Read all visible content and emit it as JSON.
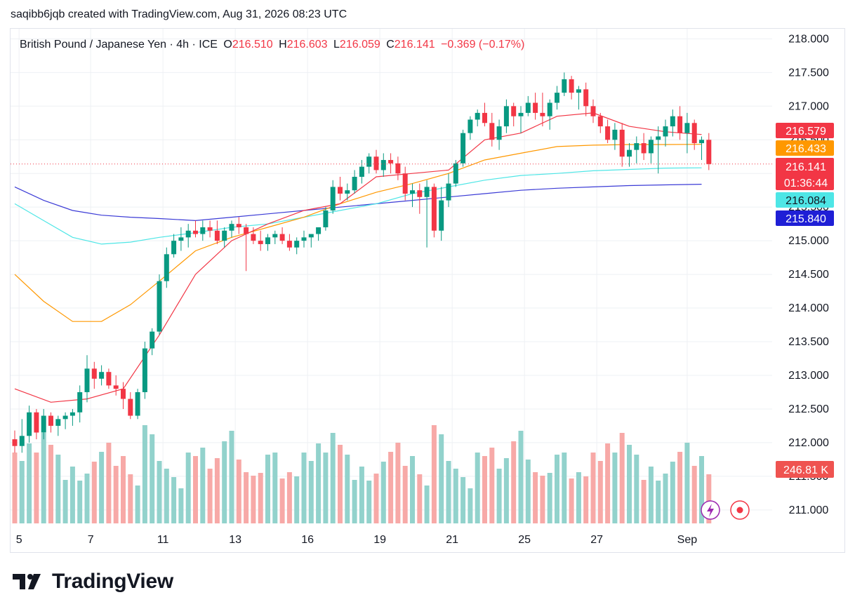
{
  "header": {
    "text": "saqibb6jqb created with TradingView.com, Aug 31, 2026 08:23 UTC"
  },
  "legend": {
    "symbol": "British Pound / Japanese Yen · 4h · ICE",
    "o_label": "O",
    "o_value": "216.510",
    "h_label": "H",
    "h_value": "216.603",
    "l_label": "L",
    "l_value": "216.059",
    "c_label": "C",
    "c_value": "216.141",
    "change": "−0.369 (−0.17%)"
  },
  "footer": {
    "brand": "TradingView"
  },
  "colors": {
    "up": "#089981",
    "down": "#f23645",
    "vol_up": "#92d2cc",
    "vol_down": "#f7a9a7",
    "ma_red": "#f23645",
    "ma_orange": "#ff9800",
    "ma_cyan": "#4ee6e6",
    "ma_blue": "#3b3bd6"
  },
  "chart_data": {
    "type": "candlestick",
    "symbol": "British Pound / Japanese Yen",
    "interval": "4h",
    "exchange": "ICE",
    "ylim": [
      210.8,
      218.15
    ],
    "y_ticks": [
      "218.000",
      "217.500",
      "217.000",
      "216.500",
      "216.000",
      "215.500",
      "215.000",
      "214.500",
      "214.000",
      "213.500",
      "213.000",
      "212.500",
      "212.000",
      "211.500",
      "211.000"
    ],
    "x_ticks": [
      {
        "label": "5",
        "index": 0.6
      },
      {
        "label": "7",
        "index": 10.5
      },
      {
        "label": "11",
        "index": 20.5
      },
      {
        "label": "13",
        "index": 30.5
      },
      {
        "label": "16",
        "index": 40.5
      },
      {
        "label": "19",
        "index": 50.5
      },
      {
        "label": "21",
        "index": 60.5
      },
      {
        "label": "25",
        "index": 70.5
      },
      {
        "label": "27",
        "index": 80.5
      },
      {
        "label": "Sep",
        "index": 93.0
      }
    ],
    "price_labels": [
      {
        "value": "216.579",
        "price": 216.579,
        "color": "#f23645"
      },
      {
        "value": "216.433",
        "price": 216.433,
        "color": "#ff9800"
      },
      {
        "value": "216.141",
        "countdown": "01:36:44",
        "price": 216.141,
        "color": "#f23645"
      },
      {
        "value": "216.084",
        "price": 216.084,
        "color": "#4ee6e6"
      },
      {
        "value": "215.840",
        "price": 215.84,
        "color": "#1f1fd6"
      }
    ],
    "volume_label": "246.81 K",
    "candles": [
      [
        212.05,
        212.18,
        211.85,
        211.95
      ],
      [
        211.95,
        212.35,
        211.85,
        212.1
      ],
      [
        212.1,
        212.55,
        212.0,
        212.45
      ],
      [
        212.45,
        212.5,
        212.05,
        212.15
      ],
      [
        212.15,
        212.5,
        212.05,
        212.4
      ],
      [
        212.4,
        212.45,
        212.15,
        212.25
      ],
      [
        212.25,
        212.4,
        212.1,
        212.35
      ],
      [
        212.35,
        212.45,
        212.2,
        212.4
      ],
      [
        212.4,
        212.5,
        212.25,
        212.45
      ],
      [
        212.45,
        212.85,
        212.3,
        212.75
      ],
      [
        212.75,
        213.3,
        212.6,
        213.1
      ],
      [
        213.1,
        213.2,
        212.8,
        212.95
      ],
      [
        212.95,
        213.15,
        212.85,
        213.05
      ],
      [
        213.05,
        213.1,
        212.8,
        212.85
      ],
      [
        212.85,
        213.0,
        212.7,
        212.8
      ],
      [
        212.8,
        212.9,
        212.5,
        212.65
      ],
      [
        212.65,
        212.75,
        212.35,
        212.4
      ],
      [
        212.4,
        212.8,
        212.35,
        212.75
      ],
      [
        212.75,
        213.5,
        212.65,
        213.4
      ],
      [
        213.4,
        213.7,
        213.3,
        213.65
      ],
      [
        213.65,
        214.5,
        213.6,
        214.4
      ],
      [
        214.4,
        214.9,
        214.3,
        214.8
      ],
      [
        214.8,
        215.1,
        214.75,
        215.0
      ],
      [
        215.0,
        215.2,
        214.85,
        215.05
      ],
      [
        215.05,
        215.25,
        214.9,
        215.15
      ],
      [
        215.15,
        215.3,
        215.05,
        215.1
      ],
      [
        215.1,
        215.3,
        215.0,
        215.2
      ],
      [
        215.2,
        215.3,
        215.05,
        215.15
      ],
      [
        215.15,
        215.3,
        214.95,
        215.0
      ],
      [
        215.0,
        215.2,
        214.9,
        215.15
      ],
      [
        215.15,
        215.3,
        215.05,
        215.25
      ],
      [
        215.25,
        215.35,
        215.1,
        215.2
      ],
      [
        215.2,
        215.25,
        214.55,
        215.1
      ],
      [
        215.1,
        215.2,
        214.95,
        215.0
      ],
      [
        215.0,
        215.15,
        214.85,
        214.95
      ],
      [
        214.95,
        215.1,
        214.85,
        215.05
      ],
      [
        215.05,
        215.15,
        214.95,
        215.1
      ],
      [
        215.1,
        215.2,
        214.95,
        215.0
      ],
      [
        215.0,
        215.1,
        214.85,
        214.9
      ],
      [
        214.9,
        215.05,
        214.8,
        215.0
      ],
      [
        215.0,
        215.15,
        214.9,
        215.05
      ],
      [
        215.05,
        215.1,
        214.9,
        215.1
      ],
      [
        215.1,
        215.2,
        215.0,
        215.2
      ],
      [
        215.2,
        215.5,
        215.15,
        215.45
      ],
      [
        215.45,
        215.9,
        215.4,
        215.8
      ],
      [
        215.8,
        215.95,
        215.6,
        215.7
      ],
      [
        215.7,
        215.85,
        215.6,
        215.75
      ],
      [
        215.75,
        216.05,
        215.7,
        215.95
      ],
      [
        215.95,
        216.2,
        215.85,
        216.1
      ],
      [
        216.1,
        216.3,
        216.0,
        216.25
      ],
      [
        216.25,
        216.35,
        216.0,
        216.05
      ],
      [
        216.05,
        216.3,
        215.95,
        216.2
      ],
      [
        216.2,
        216.3,
        216.0,
        216.15
      ],
      [
        216.15,
        216.25,
        215.9,
        216.0
      ],
      [
        216.0,
        216.1,
        215.6,
        215.7
      ],
      [
        215.7,
        215.85,
        215.5,
        215.75
      ],
      [
        215.75,
        215.85,
        215.4,
        215.65
      ],
      [
        215.65,
        215.9,
        214.9,
        215.8
      ],
      [
        215.8,
        215.85,
        215.05,
        215.15
      ],
      [
        215.15,
        215.8,
        215.0,
        215.6
      ],
      [
        215.6,
        216.0,
        215.5,
        215.85
      ],
      [
        215.85,
        216.2,
        215.8,
        216.15
      ],
      [
        216.15,
        216.65,
        216.1,
        216.6
      ],
      [
        216.6,
        216.85,
        216.5,
        216.8
      ],
      [
        216.8,
        216.95,
        216.7,
        216.9
      ],
      [
        216.9,
        217.05,
        216.7,
        216.75
      ],
      [
        216.75,
        216.9,
        216.4,
        216.5
      ],
      [
        216.5,
        216.8,
        216.35,
        216.7
      ],
      [
        216.7,
        217.1,
        216.6,
        217.0
      ],
      [
        217.0,
        217.05,
        216.7,
        216.85
      ],
      [
        216.85,
        217.0,
        216.6,
        216.9
      ],
      [
        216.9,
        217.15,
        216.85,
        217.05
      ],
      [
        217.05,
        217.2,
        216.8,
        216.9
      ],
      [
        216.9,
        217.2,
        216.7,
        216.85
      ],
      [
        216.85,
        217.1,
        216.65,
        217.05
      ],
      [
        217.05,
        217.3,
        216.95,
        217.2
      ],
      [
        217.2,
        217.5,
        217.15,
        217.4
      ],
      [
        217.4,
        217.45,
        217.1,
        217.2
      ],
      [
        217.2,
        217.3,
        216.95,
        217.25
      ],
      [
        217.25,
        217.35,
        216.85,
        217.0
      ],
      [
        217.0,
        217.1,
        216.75,
        216.85
      ],
      [
        216.85,
        216.9,
        216.6,
        216.7
      ],
      [
        216.7,
        216.8,
        216.45,
        216.5
      ],
      [
        216.5,
        216.75,
        216.35,
        216.65
      ],
      [
        216.65,
        216.75,
        216.1,
        216.25
      ],
      [
        216.25,
        216.45,
        216.1,
        216.35
      ],
      [
        216.35,
        216.55,
        216.15,
        216.45
      ],
      [
        216.45,
        216.6,
        216.2,
        216.3
      ],
      [
        216.3,
        216.55,
        216.15,
        216.5
      ],
      [
        216.5,
        216.7,
        216.0,
        216.55
      ],
      [
        216.55,
        216.8,
        216.4,
        216.7
      ],
      [
        216.7,
        216.95,
        216.55,
        216.85
      ],
      [
        216.85,
        217.0,
        216.5,
        216.6
      ],
      [
        216.6,
        216.9,
        216.3,
        216.75
      ],
      [
        216.75,
        216.8,
        216.35,
        216.45
      ],
      [
        216.45,
        216.55,
        216.2,
        216.5
      ],
      [
        216.5,
        216.6,
        216.05,
        216.14
      ]
    ],
    "volume": [
      101,
      89,
      114,
      101,
      129,
      112,
      98,
      62,
      81,
      61,
      71,
      88,
      102,
      115,
      82,
      96,
      70,
      54,
      140,
      127,
      89,
      78,
      66,
      50,
      101,
      96,
      108,
      78,
      93,
      117,
      132,
      91,
      73,
      68,
      72,
      98,
      101,
      64,
      73,
      67
    ],
    "ma_red": [
      [
        0,
        212.8
      ],
      [
        5,
        212.6
      ],
      [
        10,
        212.65
      ],
      [
        15,
        212.8
      ],
      [
        20,
        213.6
      ],
      [
        25,
        214.5
      ],
      [
        30,
        215.0
      ],
      [
        35,
        215.25
      ],
      [
        40,
        215.45
      ],
      [
        45,
        215.55
      ],
      [
        50,
        215.95
      ],
      [
        55,
        216.0
      ],
      [
        60,
        216.05
      ],
      [
        65,
        216.5
      ],
      [
        70,
        216.6
      ],
      [
        75,
        216.85
      ],
      [
        80,
        216.9
      ],
      [
        85,
        216.7
      ],
      [
        90,
        216.62
      ],
      [
        95,
        216.579
      ]
    ],
    "ma_orange": [
      [
        0,
        214.5
      ],
      [
        4,
        214.1
      ],
      [
        8,
        213.8
      ],
      [
        12,
        213.8
      ],
      [
        16,
        214.05
      ],
      [
        20,
        214.4
      ],
      [
        25,
        214.85
      ],
      [
        30,
        215.05
      ],
      [
        35,
        215.2
      ],
      [
        40,
        215.35
      ],
      [
        45,
        215.55
      ],
      [
        50,
        215.72
      ],
      [
        55,
        215.85
      ],
      [
        60,
        216.0
      ],
      [
        65,
        216.2
      ],
      [
        70,
        216.3
      ],
      [
        75,
        216.4
      ],
      [
        80,
        216.42
      ],
      [
        85,
        216.43
      ],
      [
        90,
        216.43
      ],
      [
        95,
        216.433
      ]
    ],
    "ma_cyan": [
      [
        0,
        215.55
      ],
      [
        4,
        215.3
      ],
      [
        8,
        215.05
      ],
      [
        12,
        214.95
      ],
      [
        16,
        214.98
      ],
      [
        20,
        215.05
      ],
      [
        25,
        215.12
      ],
      [
        30,
        215.2
      ],
      [
        35,
        215.25
      ],
      [
        40,
        215.35
      ],
      [
        45,
        215.45
      ],
      [
        50,
        215.55
      ],
      [
        55,
        215.7
      ],
      [
        60,
        215.8
      ],
      [
        65,
        215.9
      ],
      [
        70,
        215.97
      ],
      [
        75,
        216.0
      ],
      [
        80,
        216.04
      ],
      [
        85,
        216.06
      ],
      [
        90,
        216.08
      ],
      [
        95,
        216.084
      ]
    ],
    "ma_blue": [
      [
        0,
        215.8
      ],
      [
        4,
        215.6
      ],
      [
        8,
        215.45
      ],
      [
        12,
        215.38
      ],
      [
        16,
        215.35
      ],
      [
        20,
        215.33
      ],
      [
        25,
        215.3
      ],
      [
        30,
        215.35
      ],
      [
        35,
        215.4
      ],
      [
        40,
        215.45
      ],
      [
        45,
        215.5
      ],
      [
        50,
        215.55
      ],
      [
        55,
        215.6
      ],
      [
        60,
        215.65
      ],
      [
        65,
        215.7
      ],
      [
        70,
        215.75
      ],
      [
        75,
        215.78
      ],
      [
        80,
        215.8
      ],
      [
        85,
        215.82
      ],
      [
        90,
        215.83
      ],
      [
        95,
        215.84
      ]
    ]
  }
}
